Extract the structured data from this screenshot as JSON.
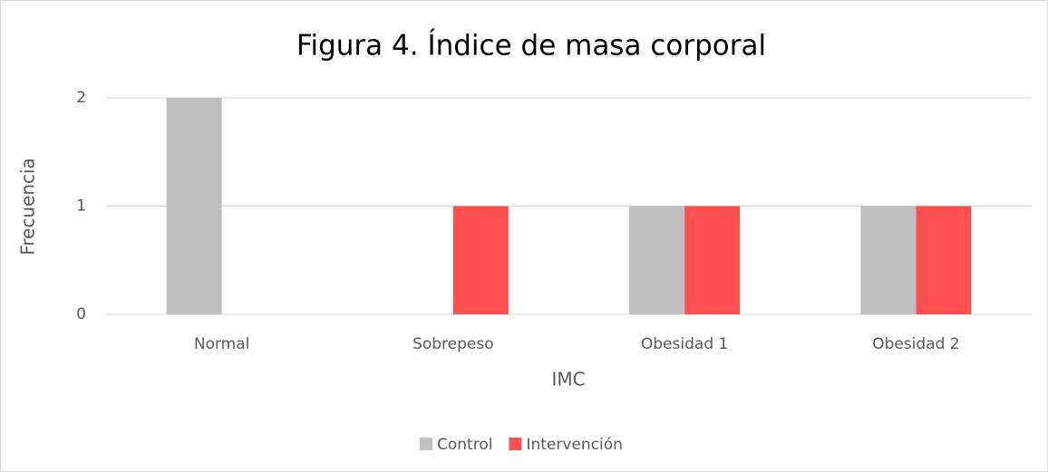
{
  "chart_data": {
    "type": "bar",
    "title": "Figura 4. Índice de masa corporal",
    "x_label": "IMC",
    "y_label": "Frecuencia",
    "categories": [
      "Normal",
      "Sobrepeso",
      "Obesidad 1",
      "Obesidad 2"
    ],
    "series": [
      {
        "name": "Control",
        "color": "#bfbfbf",
        "values": [
          2,
          0,
          1,
          1
        ]
      },
      {
        "name": "Intervención",
        "color": "#ff5050",
        "values": [
          0,
          1,
          1,
          1
        ]
      }
    ],
    "ylim": [
      0,
      2
    ],
    "yticks": [
      0,
      1,
      2
    ],
    "grid": true,
    "legend": "bottom"
  }
}
